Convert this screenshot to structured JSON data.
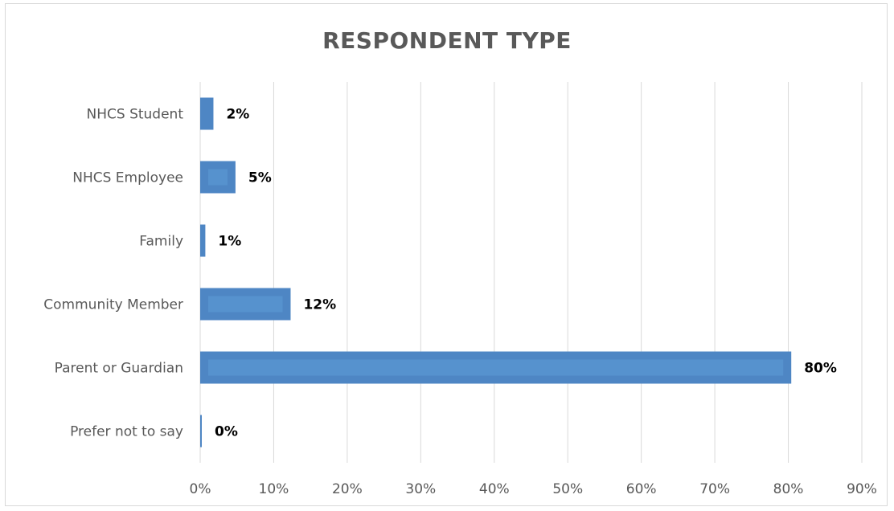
{
  "chart_data": {
    "type": "bar",
    "orientation": "horizontal",
    "title": "RESPONDENT TYPE",
    "categories": [
      "NHCS Student",
      "NHCS Employee",
      "Family",
      "Community Member",
      "Parent or Guardian",
      "Prefer not to say"
    ],
    "values": [
      1.8,
      4.8,
      0.7,
      12.3,
      80.4,
      0.2
    ],
    "data_labels": [
      "2%",
      "5%",
      "1%",
      "12%",
      "80%",
      "0%"
    ],
    "xlim": [
      0,
      90
    ],
    "x_ticks": [
      0,
      10,
      20,
      30,
      40,
      50,
      60,
      70,
      80,
      90
    ],
    "x_tick_labels": [
      "0%",
      "10%",
      "20%",
      "30%",
      "40%",
      "50%",
      "60%",
      "70%",
      "80%",
      "90%"
    ],
    "grid": true,
    "legend": "none",
    "colors": {
      "bar": "#4e86c4",
      "bar_highlight": "#5b9bd5",
      "grid": "#d9d9d9",
      "text": "#595959"
    }
  }
}
